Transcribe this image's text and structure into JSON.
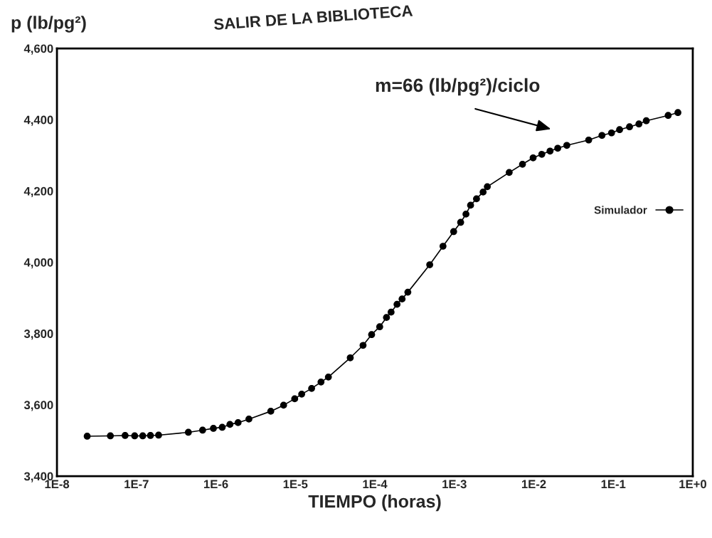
{
  "chart_data": {
    "type": "line",
    "xlabel": "TIEMPO (horas)",
    "ylabel": "p (lb/pg²)",
    "annotations": [
      "m=66 (lb/pg²)/ciclo",
      "SALIR DE LA BIBLIOTECA"
    ],
    "log": "x",
    "xlim": [
      1e-08,
      1
    ],
    "ylim": [
      3400,
      4600
    ],
    "xticks": [
      {
        "value": 1e-08,
        "label": "1E-8"
      },
      {
        "value": 1e-07,
        "label": "1E-7"
      },
      {
        "value": 1e-06,
        "label": "1E-6"
      },
      {
        "value": 1e-05,
        "label": "1E-5"
      },
      {
        "value": 0.0001,
        "label": "1E-4"
      },
      {
        "value": 0.001,
        "label": "1E-3"
      },
      {
        "value": 0.01,
        "label": "1E-2"
      },
      {
        "value": 0.1,
        "label": "1E-1"
      },
      {
        "value": 1,
        "label": "1E+0"
      }
    ],
    "yticks": [
      {
        "value": 3400,
        "label": "3,400"
      },
      {
        "value": 3600,
        "label": "3,600"
      },
      {
        "value": 3800,
        "label": "3,800"
      },
      {
        "value": 4000,
        "label": "4,000"
      },
      {
        "value": 4200,
        "label": "4,200"
      },
      {
        "value": 4400,
        "label": "4,400"
      },
      {
        "value": 4600,
        "label": "4,600"
      }
    ],
    "grid": false,
    "legend": "right",
    "marker": "circle",
    "line_style": "solid",
    "series": [
      {
        "name": "Simulador",
        "color": "#000000",
        "x": [
          2.4e-08,
          4.7e-08,
          7.2e-08,
          9.5e-08,
          1.2e-07,
          1.5e-07,
          1.9e-07,
          4.5e-07,
          6.8e-07,
          9.3e-07,
          1.2e-06,
          1.5e-06,
          1.9e-06,
          2.6e-06,
          4.9e-06,
          7.1e-06,
          9.8e-06,
          1.2e-05,
          1.6e-05,
          2.1e-05,
          2.6e-05,
          4.9e-05,
          7.1e-05,
          9.1e-05,
          0.000115,
          0.00014,
          0.00016,
          0.00019,
          0.00022,
          0.00026,
          0.00049,
          0.00072,
          0.00098,
          0.0012,
          0.0014,
          0.0016,
          0.0019,
          0.0023,
          0.0026,
          0.0049,
          0.0072,
          0.0098,
          0.0126,
          0.016,
          0.02,
          0.026,
          0.049,
          0.072,
          0.095,
          0.12,
          0.16,
          0.21,
          0.26,
          0.49,
          0.65
        ],
        "values": [
          3512,
          3513,
          3514,
          3513,
          3513,
          3514,
          3515,
          3523,
          3529,
          3534,
          3537,
          3545,
          3550,
          3560,
          3582,
          3599,
          3617,
          3630,
          3646,
          3664,
          3678,
          3732,
          3767,
          3797,
          3819,
          3845,
          3860,
          3882,
          3897,
          3916,
          3993,
          4045,
          4086,
          4112,
          4135,
          4160,
          4178,
          4197,
          4212,
          4252,
          4275,
          4293,
          4303,
          4312,
          4320,
          4328,
          4343,
          4356,
          4363,
          4372,
          4380,
          4388,
          4397,
          4412,
          4420
        ]
      }
    ]
  }
}
